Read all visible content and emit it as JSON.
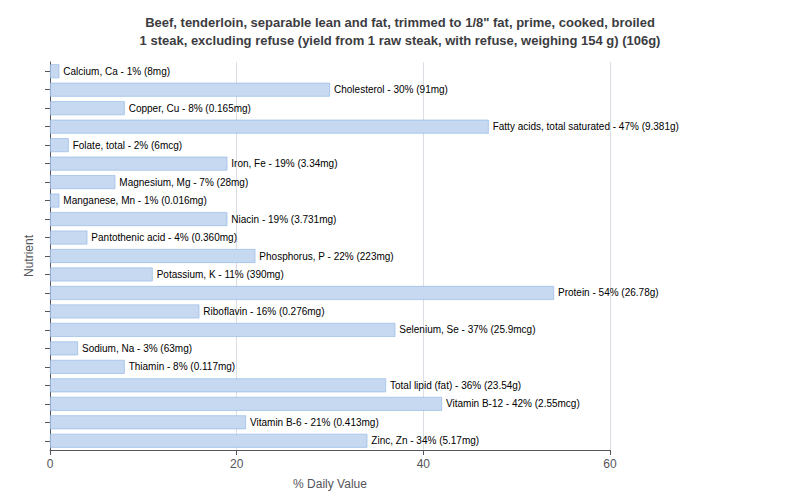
{
  "chart_data": {
    "type": "bar",
    "orientation": "horizontal",
    "title": "Beef, tenderloin, separable lean and fat, trimmed to 1/8\" fat, prime, cooked, broiled\n1 steak, excluding refuse (yield from 1 raw steak, with refuse, weighing 154 g) (106g)",
    "xlabel": "% Daily Value",
    "ylabel": "Nutrient",
    "categories": [
      "Calcium, Ca - 1% (8mg)",
      "Cholesterol - 30% (91mg)",
      "Copper, Cu - 8% (0.165mg)",
      "Fatty acids, total saturated - 47% (9.381g)",
      "Folate, total - 2% (6mcg)",
      "Iron, Fe - 19% (3.34mg)",
      "Magnesium, Mg - 7% (28mg)",
      "Manganese, Mn - 1% (0.016mg)",
      "Niacin - 19% (3.731mg)",
      "Pantothenic acid - 4% (0.360mg)",
      "Phosphorus, P - 22% (223mg)",
      "Potassium, K - 11% (390mg)",
      "Protein - 54% (26.78g)",
      "Riboflavin - 16% (0.276mg)",
      "Selenium, Se - 37% (25.9mcg)",
      "Sodium, Na - 3% (63mg)",
      "Thiamin - 8% (0.117mg)",
      "Total lipid (fat) - 36% (23.54g)",
      "Vitamin B-12 - 42% (2.55mcg)",
      "Vitamin B-6 - 21% (0.413mg)",
      "Zinc, Zn - 34% (5.17mg)"
    ],
    "values": [
      1,
      30,
      8,
      47,
      2,
      19,
      7,
      1,
      19,
      4,
      22,
      11,
      54,
      16,
      37,
      3,
      8,
      36,
      42,
      21,
      34
    ],
    "color": "#c6d9f1",
    "xlim": [
      0,
      60
    ],
    "xticks": [
      0,
      20,
      40,
      60
    ],
    "grid": true,
    "tick_labels": "x"
  }
}
